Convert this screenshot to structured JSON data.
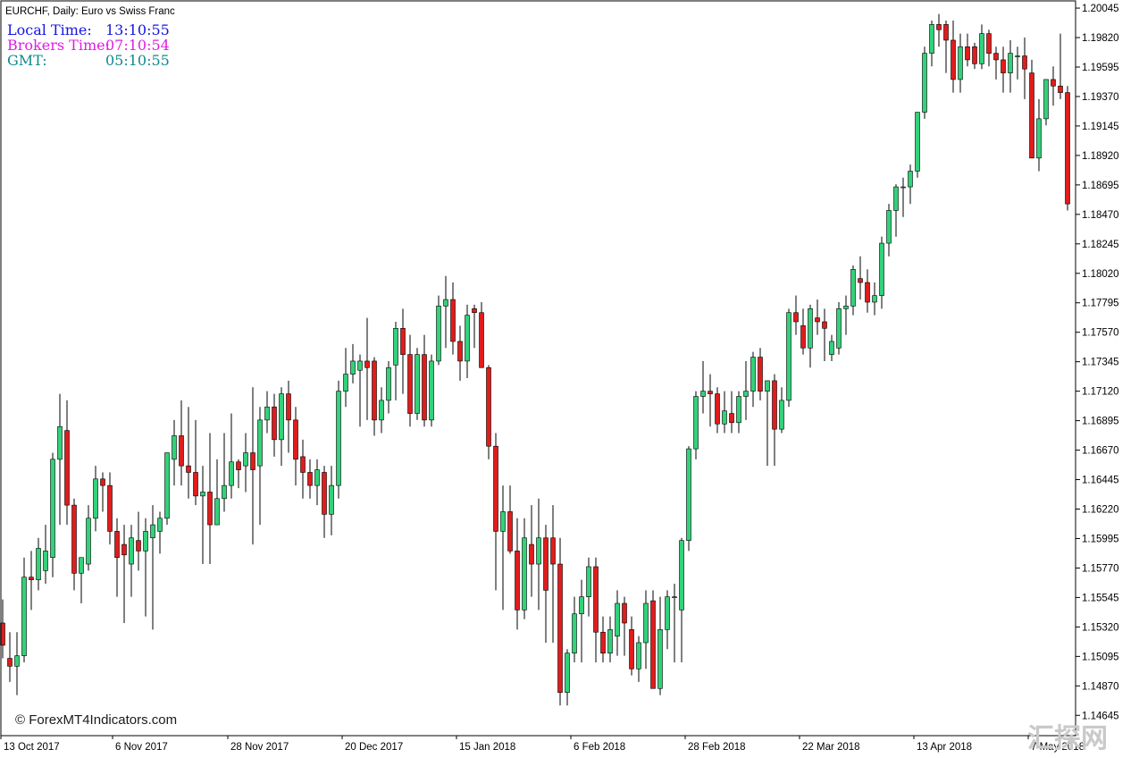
{
  "title": "EURCHF, Daily:  Euro vs Swiss Franc",
  "clock": {
    "local_label": "Local Time:",
    "local_value": "13:10:55",
    "broker_label": "Brokers Time:",
    "broker_value": "07:10:54",
    "gmt_label": "GMT:",
    "gmt_value": "05:10:55"
  },
  "credit": "© ForexMT4Indicators.com",
  "watermark": "汇探网",
  "colors": {
    "bull": "#33d17a",
    "bear": "#e01c1c",
    "wick": "#000000",
    "local_time": "#1515e0",
    "broker_time": "#e01ce0",
    "gmt": "#108a8a",
    "watermark": "#c9c9c9"
  },
  "chart_data": {
    "type": "candlestick",
    "symbol": "EURCHF",
    "timeframe": "Daily",
    "description": "Euro vs Swiss Franc",
    "y_ticks": [
      "1.20045",
      "1.19820",
      "1.19595",
      "1.19370",
      "1.19145",
      "1.18920",
      "1.18695",
      "1.18470",
      "1.18245",
      "1.18020",
      "1.17795",
      "1.17570",
      "1.17345",
      "1.17120",
      "1.16895",
      "1.16670",
      "1.16445",
      "1.16220",
      "1.15995",
      "1.15770",
      "1.15545",
      "1.15320",
      "1.15095",
      "1.14870",
      "1.14645"
    ],
    "x_ticks": [
      "13 Oct 2017",
      "6 Nov 2017",
      "28 Nov 2017",
      "20 Dec 2017",
      "15 Jan 2018",
      "6 Feb 2018",
      "28 Feb 2018",
      "22 Mar 2018",
      "13 Apr 2018",
      "7 May 2018"
    ],
    "ylim": [
      1.1449,
      1.201
    ],
    "ohlc": [
      [
        1.1535,
        1.1553,
        1.1508,
        1.1518
      ],
      [
        1.1508,
        1.1528,
        1.149,
        1.1502
      ],
      [
        1.1502,
        1.1528,
        1.148,
        1.151
      ],
      [
        1.151,
        1.1585,
        1.1505,
        1.157
      ],
      [
        1.157,
        1.159,
        1.1545,
        1.1568
      ],
      [
        1.1568,
        1.16,
        1.156,
        1.1592
      ],
      [
        1.1575,
        1.161,
        1.1565,
        1.159
      ],
      [
        1.1585,
        1.1665,
        1.157,
        1.166
      ],
      [
        1.166,
        1.171,
        1.161,
        1.1685
      ],
      [
        1.1682,
        1.1705,
        1.161,
        1.1625
      ],
      [
        1.1625,
        1.163,
        1.156,
        1.1573
      ],
      [
        1.1573,
        1.1585,
        1.155,
        1.1585
      ],
      [
        1.158,
        1.1625,
        1.1575,
        1.1615
      ],
      [
        1.1615,
        1.1655,
        1.1605,
        1.1645
      ],
      [
        1.1645,
        1.165,
        1.162,
        1.164
      ],
      [
        1.164,
        1.165,
        1.1595,
        1.1605
      ],
      [
        1.1605,
        1.1615,
        1.1555,
        1.1585
      ],
      [
        1.1595,
        1.161,
        1.1535,
        1.1587
      ],
      [
        1.158,
        1.161,
        1.1555,
        1.16
      ],
      [
        1.1598,
        1.162,
        1.1575,
        1.159
      ],
      [
        1.159,
        1.1615,
        1.154,
        1.1605
      ],
      [
        1.16,
        1.1625,
        1.153,
        1.161
      ],
      [
        1.1605,
        1.162,
        1.1588,
        1.1615
      ],
      [
        1.1615,
        1.1665,
        1.161,
        1.1665
      ],
      [
        1.166,
        1.169,
        1.164,
        1.1678
      ],
      [
        1.1678,
        1.1705,
        1.164,
        1.1655
      ],
      [
        1.1655,
        1.17,
        1.163,
        1.165
      ],
      [
        1.165,
        1.169,
        1.1625,
        1.1632
      ],
      [
        1.1632,
        1.1655,
        1.158,
        1.1635
      ],
      [
        1.1635,
        1.168,
        1.158,
        1.161
      ],
      [
        1.161,
        1.166,
        1.161,
        1.163
      ],
      [
        1.163,
        1.168,
        1.162,
        1.164
      ],
      [
        1.164,
        1.1695,
        1.163,
        1.1658
      ],
      [
        1.1658,
        1.166,
        1.1638,
        1.1652
      ],
      [
        1.1655,
        1.168,
        1.1635,
        1.1665
      ],
      [
        1.1665,
        1.1715,
        1.1595,
        1.1652
      ],
      [
        1.1655,
        1.17,
        1.161,
        1.169
      ],
      [
        1.169,
        1.1712,
        1.168,
        1.17
      ],
      [
        1.17,
        1.171,
        1.1662,
        1.1675
      ],
      [
        1.1675,
        1.1715,
        1.1655,
        1.171
      ],
      [
        1.171,
        1.172,
        1.1665,
        1.169
      ],
      [
        1.169,
        1.17,
        1.164,
        1.166
      ],
      [
        1.1662,
        1.1675,
        1.163,
        1.165
      ],
      [
        1.165,
        1.166,
        1.163,
        1.164
      ],
      [
        1.164,
        1.166,
        1.1625,
        1.1652
      ],
      [
        1.165,
        1.1655,
        1.16,
        1.1618
      ],
      [
        1.1618,
        1.1655,
        1.1602,
        1.164
      ],
      [
        1.164,
        1.172,
        1.163,
        1.1712
      ],
      [
        1.1712,
        1.1745,
        1.17,
        1.1725
      ],
      [
        1.1725,
        1.1748,
        1.1718,
        1.1735
      ],
      [
        1.1728,
        1.174,
        1.1685,
        1.1735
      ],
      [
        1.1735,
        1.1768,
        1.169,
        1.173
      ],
      [
        1.1735,
        1.1738,
        1.1678,
        1.169
      ],
      [
        1.169,
        1.1715,
        1.168,
        1.1705
      ],
      [
        1.1705,
        1.1735,
        1.1695,
        1.173
      ],
      [
        1.1732,
        1.1765,
        1.1705,
        1.176
      ],
      [
        1.176,
        1.1775,
        1.171,
        1.174
      ],
      [
        1.174,
        1.1755,
        1.1685,
        1.1695
      ],
      [
        1.1695,
        1.1745,
        1.169,
        1.174
      ],
      [
        1.174,
        1.1755,
        1.1685,
        1.169
      ],
      [
        1.169,
        1.174,
        1.1685,
        1.1735
      ],
      [
        1.1735,
        1.1785,
        1.1732,
        1.1777
      ],
      [
        1.1777,
        1.18,
        1.1745,
        1.1782
      ],
      [
        1.1782,
        1.1795,
        1.174,
        1.175
      ],
      [
        1.175,
        1.1762,
        1.172,
        1.1735
      ],
      [
        1.1735,
        1.1778,
        1.1722,
        1.177
      ],
      [
        1.1775,
        1.1778,
        1.1745,
        1.1772
      ],
      [
        1.1772,
        1.178,
        1.173,
        1.173
      ],
      [
        1.173,
        1.1732,
        1.166,
        1.167
      ],
      [
        1.167,
        1.168,
        1.156,
        1.1605
      ],
      [
        1.1605,
        1.164,
        1.1545,
        1.162
      ],
      [
        1.162,
        1.164,
        1.1588,
        1.159
      ],
      [
        1.159,
        1.1615,
        1.153,
        1.1545
      ],
      [
        1.1545,
        1.1615,
        1.1538,
        1.16
      ],
      [
        1.1595,
        1.1625,
        1.1555,
        1.158
      ],
      [
        1.158,
        1.163,
        1.1545,
        1.16
      ],
      [
        1.16,
        1.161,
        1.152,
        1.156
      ],
      [
        1.16,
        1.1625,
        1.152,
        1.158
      ],
      [
        1.158,
        1.16,
        1.1472,
        1.1482
      ],
      [
        1.1482,
        1.1515,
        1.1472,
        1.1512
      ],
      [
        1.1512,
        1.1555,
        1.1505,
        1.1542
      ],
      [
        1.1542,
        1.1568,
        1.1505,
        1.1555
      ],
      [
        1.1555,
        1.1585,
        1.154,
        1.1578
      ],
      [
        1.1578,
        1.1585,
        1.1505,
        1.1528
      ],
      [
        1.1528,
        1.154,
        1.1505,
        1.1512
      ],
      [
        1.1512,
        1.154,
        1.1505,
        1.153
      ],
      [
        1.1525,
        1.156,
        1.151,
        1.155
      ],
      [
        1.155,
        1.1555,
        1.151,
        1.1535
      ],
      [
        1.153,
        1.154,
        1.1495,
        1.15
      ],
      [
        1.15,
        1.1525,
        1.149,
        1.152
      ],
      [
        1.152,
        1.156,
        1.15,
        1.155
      ],
      [
        1.1552,
        1.156,
        1.1485,
        1.1485
      ],
      [
        1.1485,
        1.1555,
        1.148,
        1.153
      ],
      [
        1.153,
        1.156,
        1.1515,
        1.1555
      ],
      [
        1.1555,
        1.1565,
        1.1505,
        1.1555
      ],
      [
        1.1545,
        1.16,
        1.1505,
        1.1598
      ],
      [
        1.1598,
        1.167,
        1.159,
        1.1668
      ],
      [
        1.1668,
        1.1712,
        1.166,
        1.1708
      ],
      [
        1.1708,
        1.1735,
        1.1695,
        1.1712
      ],
      [
        1.1712,
        1.1725,
        1.1685,
        1.171
      ],
      [
        1.171,
        1.1715,
        1.168,
        1.1687
      ],
      [
        1.1687,
        1.1712,
        1.168,
        1.1697
      ],
      [
        1.1695,
        1.1712,
        1.168,
        1.1688
      ],
      [
        1.1688,
        1.1712,
        1.168,
        1.1708
      ],
      [
        1.1708,
        1.1735,
        1.169,
        1.1712
      ],
      [
        1.1712,
        1.1742,
        1.17,
        1.1738
      ],
      [
        1.1738,
        1.1745,
        1.1705,
        1.1712
      ],
      [
        1.1712,
        1.1718,
        1.1655,
        1.172
      ],
      [
        1.172,
        1.1725,
        1.1655,
        1.1683
      ],
      [
        1.1683,
        1.1715,
        1.168,
        1.1705
      ],
      [
        1.1705,
        1.1775,
        1.17,
        1.1772
      ],
      [
        1.1772,
        1.1785,
        1.1755,
        1.1765
      ],
      [
        1.1762,
        1.1775,
        1.174,
        1.1745
      ],
      [
        1.1745,
        1.1778,
        1.173,
        1.1775
      ],
      [
        1.1768,
        1.1782,
        1.1755,
        1.1765
      ],
      [
        1.1765,
        1.1775,
        1.1735,
        1.176
      ],
      [
        1.174,
        1.1755,
        1.1735,
        1.175
      ],
      [
        1.1745,
        1.178,
        1.174,
        1.1775
      ],
      [
        1.1775,
        1.1785,
        1.1755,
        1.1777
      ],
      [
        1.1777,
        1.1808,
        1.177,
        1.1805
      ],
      [
        1.1798,
        1.1815,
        1.1782,
        1.1795
      ],
      [
        1.1795,
        1.1805,
        1.1772,
        1.178
      ],
      [
        1.178,
        1.1795,
        1.177,
        1.1785
      ],
      [
        1.1785,
        1.183,
        1.1775,
        1.1825
      ],
      [
        1.1825,
        1.1855,
        1.1815,
        1.185
      ],
      [
        1.185,
        1.187,
        1.183,
        1.1868
      ],
      [
        1.1868,
        1.1875,
        1.1845,
        1.1868
      ],
      [
        1.1868,
        1.1885,
        1.1855,
        1.188
      ],
      [
        1.188,
        1.1925,
        1.1875,
        1.1925
      ],
      [
        1.1925,
        1.1975,
        1.192,
        1.197
      ],
      [
        1.197,
        1.1995,
        1.196,
        1.1992
      ],
      [
        1.1992,
        1.2,
        1.1975,
        1.1988
      ],
      [
        1.1992,
        1.1995,
        1.1955,
        1.198
      ],
      [
        1.198,
        1.1995,
        1.194,
        1.195
      ],
      [
        1.195,
        1.1985,
        1.194,
        1.1975
      ],
      [
        1.1975,
        1.1985,
        1.196,
        1.1965
      ],
      [
        1.1975,
        1.1978,
        1.1958,
        1.1962
      ],
      [
        1.1962,
        1.1992,
        1.1958,
        1.1985
      ],
      [
        1.1985,
        1.1988,
        1.196,
        1.197
      ],
      [
        1.197,
        1.1975,
        1.195,
        1.1965
      ],
      [
        1.1965,
        1.1975,
        1.194,
        1.1955
      ],
      [
        1.1955,
        1.198,
        1.194,
        1.197
      ],
      [
        1.1968,
        1.1975,
        1.195,
        1.1968
      ],
      [
        1.1968,
        1.1982,
        1.1935,
        1.1958
      ],
      [
        1.1955,
        1.1965,
        1.189,
        1.189
      ],
      [
        1.189,
        1.1935,
        1.188,
        1.192
      ],
      [
        1.192,
        1.195,
        1.1915,
        1.195
      ],
      [
        1.195,
        1.196,
        1.193,
        1.1945
      ],
      [
        1.1945,
        1.1985,
        1.1935,
        1.194
      ],
      [
        1.194,
        1.1945,
        1.185,
        1.1855
      ]
    ]
  }
}
